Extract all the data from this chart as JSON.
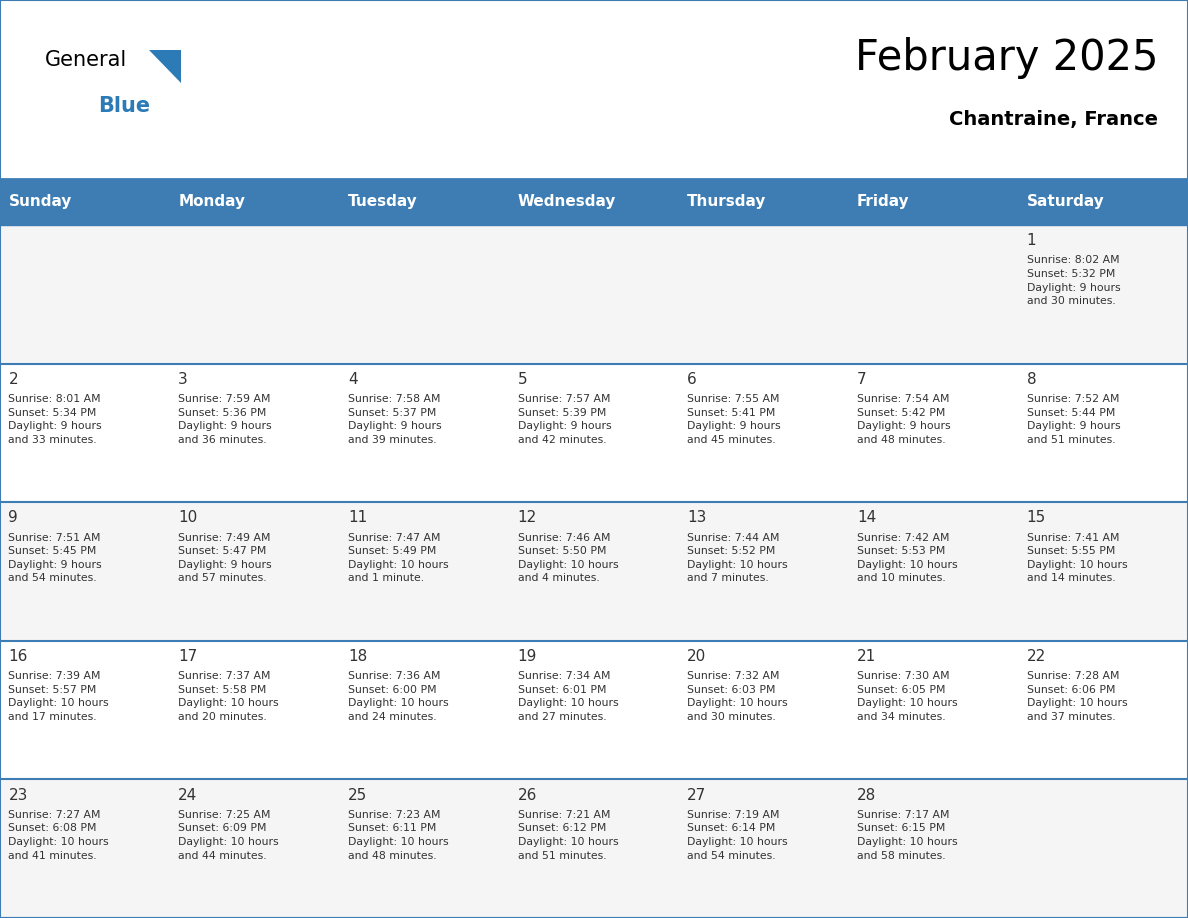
{
  "title": "February 2025",
  "subtitle": "Chantraine, France",
  "header_bg_color": "#3D7DB3",
  "header_text_color": "#FFFFFF",
  "cell_bg_even": "#F5F5F5",
  "cell_bg_odd": "#FFFFFF",
  "border_color": "#3D7DB3",
  "text_color": "#333333",
  "days_of_week": [
    "Sunday",
    "Monday",
    "Tuesday",
    "Wednesday",
    "Thursday",
    "Friday",
    "Saturday"
  ],
  "calendar_data": [
    [
      {
        "day": null,
        "sunrise": null,
        "sunset": null,
        "daylight": null
      },
      {
        "day": null,
        "sunrise": null,
        "sunset": null,
        "daylight": null
      },
      {
        "day": null,
        "sunrise": null,
        "sunset": null,
        "daylight": null
      },
      {
        "day": null,
        "sunrise": null,
        "sunset": null,
        "daylight": null
      },
      {
        "day": null,
        "sunrise": null,
        "sunset": null,
        "daylight": null
      },
      {
        "day": null,
        "sunrise": null,
        "sunset": null,
        "daylight": null
      },
      {
        "day": 1,
        "sunrise": "8:02 AM",
        "sunset": "5:32 PM",
        "daylight": "9 hours\nand 30 minutes."
      }
    ],
    [
      {
        "day": 2,
        "sunrise": "8:01 AM",
        "sunset": "5:34 PM",
        "daylight": "9 hours\nand 33 minutes."
      },
      {
        "day": 3,
        "sunrise": "7:59 AM",
        "sunset": "5:36 PM",
        "daylight": "9 hours\nand 36 minutes."
      },
      {
        "day": 4,
        "sunrise": "7:58 AM",
        "sunset": "5:37 PM",
        "daylight": "9 hours\nand 39 minutes."
      },
      {
        "day": 5,
        "sunrise": "7:57 AM",
        "sunset": "5:39 PM",
        "daylight": "9 hours\nand 42 minutes."
      },
      {
        "day": 6,
        "sunrise": "7:55 AM",
        "sunset": "5:41 PM",
        "daylight": "9 hours\nand 45 minutes."
      },
      {
        "day": 7,
        "sunrise": "7:54 AM",
        "sunset": "5:42 PM",
        "daylight": "9 hours\nand 48 minutes."
      },
      {
        "day": 8,
        "sunrise": "7:52 AM",
        "sunset": "5:44 PM",
        "daylight": "9 hours\nand 51 minutes."
      }
    ],
    [
      {
        "day": 9,
        "sunrise": "7:51 AM",
        "sunset": "5:45 PM",
        "daylight": "9 hours\nand 54 minutes."
      },
      {
        "day": 10,
        "sunrise": "7:49 AM",
        "sunset": "5:47 PM",
        "daylight": "9 hours\nand 57 minutes."
      },
      {
        "day": 11,
        "sunrise": "7:47 AM",
        "sunset": "5:49 PM",
        "daylight": "10 hours\nand 1 minute."
      },
      {
        "day": 12,
        "sunrise": "7:46 AM",
        "sunset": "5:50 PM",
        "daylight": "10 hours\nand 4 minutes."
      },
      {
        "day": 13,
        "sunrise": "7:44 AM",
        "sunset": "5:52 PM",
        "daylight": "10 hours\nand 7 minutes."
      },
      {
        "day": 14,
        "sunrise": "7:42 AM",
        "sunset": "5:53 PM",
        "daylight": "10 hours\nand 10 minutes."
      },
      {
        "day": 15,
        "sunrise": "7:41 AM",
        "sunset": "5:55 PM",
        "daylight": "10 hours\nand 14 minutes."
      }
    ],
    [
      {
        "day": 16,
        "sunrise": "7:39 AM",
        "sunset": "5:57 PM",
        "daylight": "10 hours\nand 17 minutes."
      },
      {
        "day": 17,
        "sunrise": "7:37 AM",
        "sunset": "5:58 PM",
        "daylight": "10 hours\nand 20 minutes."
      },
      {
        "day": 18,
        "sunrise": "7:36 AM",
        "sunset": "6:00 PM",
        "daylight": "10 hours\nand 24 minutes."
      },
      {
        "day": 19,
        "sunrise": "7:34 AM",
        "sunset": "6:01 PM",
        "daylight": "10 hours\nand 27 minutes."
      },
      {
        "day": 20,
        "sunrise": "7:32 AM",
        "sunset": "6:03 PM",
        "daylight": "10 hours\nand 30 minutes."
      },
      {
        "day": 21,
        "sunrise": "7:30 AM",
        "sunset": "6:05 PM",
        "daylight": "10 hours\nand 34 minutes."
      },
      {
        "day": 22,
        "sunrise": "7:28 AM",
        "sunset": "6:06 PM",
        "daylight": "10 hours\nand 37 minutes."
      }
    ],
    [
      {
        "day": 23,
        "sunrise": "7:27 AM",
        "sunset": "6:08 PM",
        "daylight": "10 hours\nand 41 minutes."
      },
      {
        "day": 24,
        "sunrise": "7:25 AM",
        "sunset": "6:09 PM",
        "daylight": "10 hours\nand 44 minutes."
      },
      {
        "day": 25,
        "sunrise": "7:23 AM",
        "sunset": "6:11 PM",
        "daylight": "10 hours\nand 48 minutes."
      },
      {
        "day": 26,
        "sunrise": "7:21 AM",
        "sunset": "6:12 PM",
        "daylight": "10 hours\nand 51 minutes."
      },
      {
        "day": 27,
        "sunrise": "7:19 AM",
        "sunset": "6:14 PM",
        "daylight": "10 hours\nand 54 minutes."
      },
      {
        "day": 28,
        "sunrise": "7:17 AM",
        "sunset": "6:15 PM",
        "daylight": "10 hours\nand 58 minutes."
      },
      {
        "day": null,
        "sunrise": null,
        "sunset": null,
        "daylight": null
      }
    ]
  ]
}
